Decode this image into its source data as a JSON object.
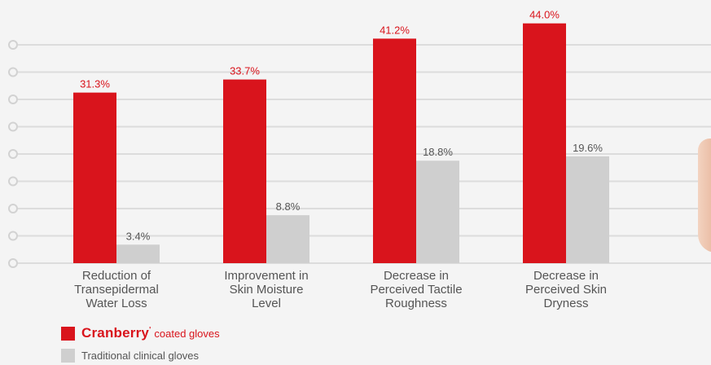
{
  "chart_data": {
    "type": "bar",
    "categories": [
      [
        "Reduction of",
        "Transepidermal",
        "Water Loss"
      ],
      [
        "Improvement in",
        "Skin Moisture",
        "Level"
      ],
      [
        "Decrease in",
        "Perceived Tactile",
        "Roughness"
      ],
      [
        "Decrease in",
        "Perceived Skin",
        "Dryness"
      ]
    ],
    "series": [
      {
        "name": "Cranberry coated gloves",
        "color": "#d9141c",
        "values": [
          31.3,
          33.7,
          41.2,
          44.0
        ],
        "labels": [
          "31.3%",
          "33.7%",
          "41.2%",
          "44.0%"
        ]
      },
      {
        "name": "Traditional clinical gloves",
        "color": "#cfcfcf",
        "values": [
          3.4,
          8.8,
          18.8,
          19.6
        ],
        "labels": [
          "3.4%",
          "8.8%",
          "18.8%",
          "19.6%"
        ]
      }
    ],
    "ylim": [
      0,
      45
    ],
    "grid": true,
    "legend_position": "bottom-left"
  },
  "legend": {
    "brand": "Cranberry",
    "brand_mark": "'",
    "red_suffix": "coated gloves",
    "grey_label": "Traditional clinical gloves"
  }
}
